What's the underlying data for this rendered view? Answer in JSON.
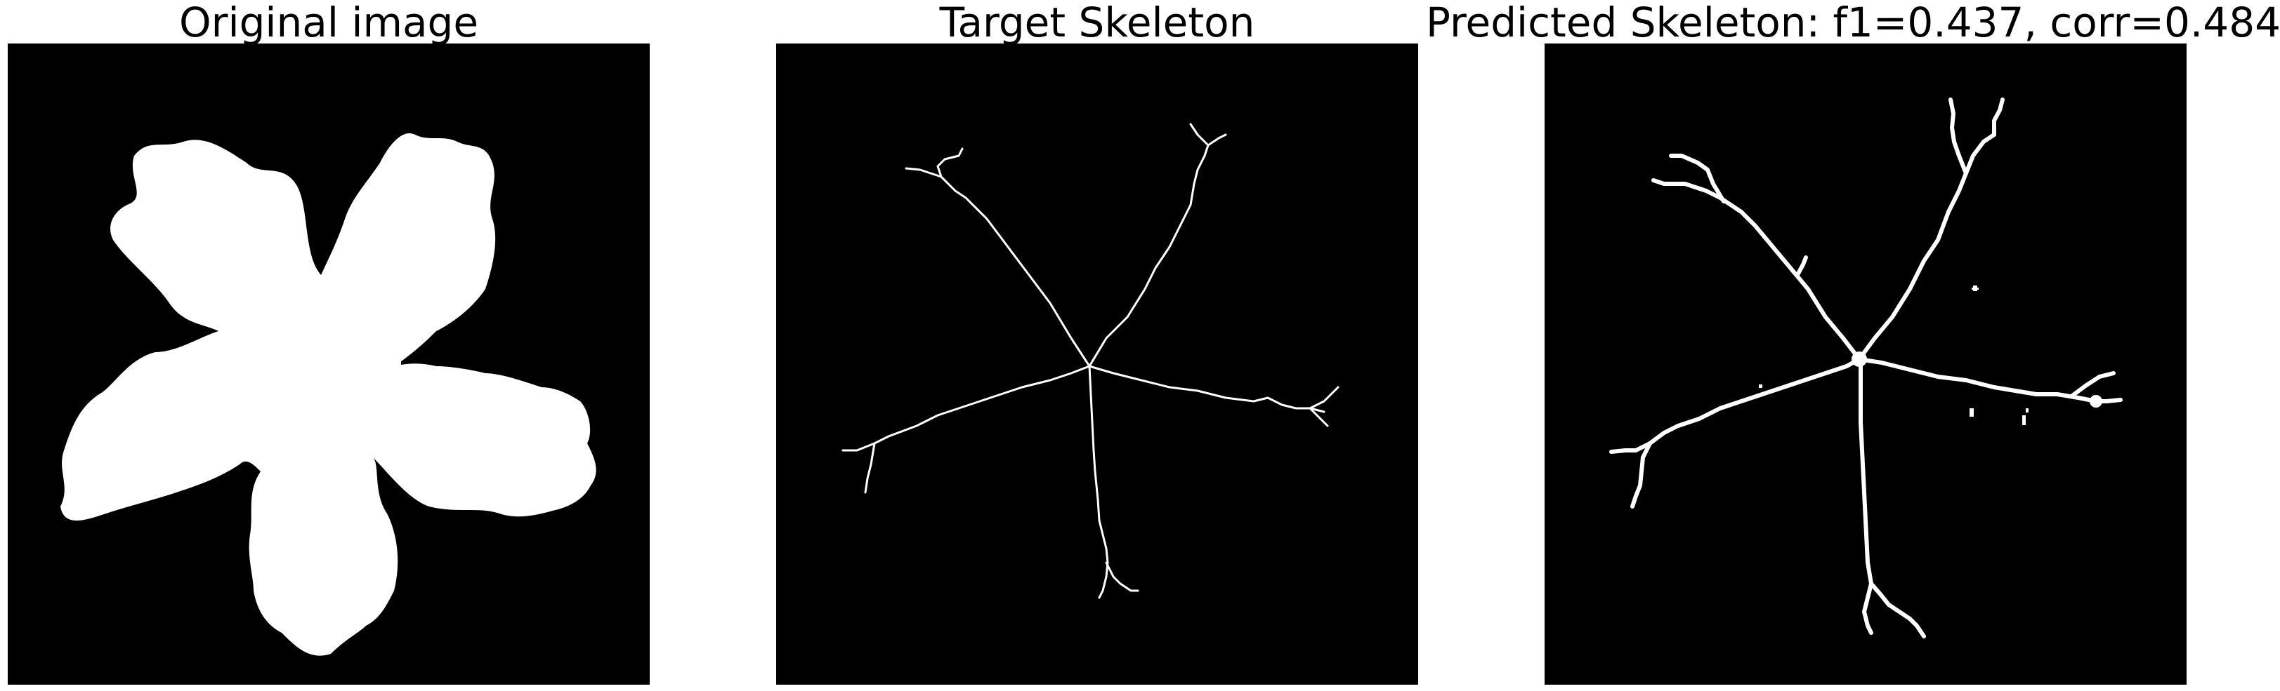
{
  "panels": {
    "original": {
      "title": "Original image"
    },
    "target": {
      "title": "Target Skeleton"
    },
    "predicted": {
      "title": "Predicted Skeleton: f1=0.437, corr=0.484"
    }
  },
  "colors": {
    "background": "#000000",
    "foreground": "#ffffff",
    "page": "#ffffff"
  }
}
